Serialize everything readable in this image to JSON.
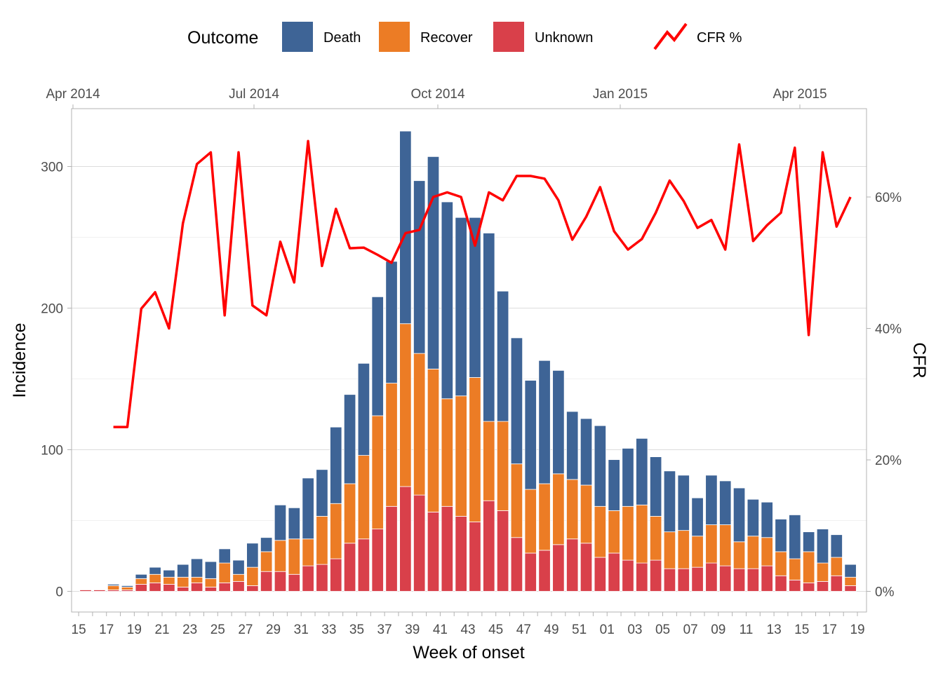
{
  "chart_data": {
    "type": "bar",
    "stacked": true,
    "xlabel": "Week of onset",
    "ylabel": "Incidence",
    "y2label": "CFR",
    "ylim": [
      0,
      330
    ],
    "y2lim": [
      0,
      0.7
    ],
    "y_ticks": [
      0,
      100,
      200,
      300
    ],
    "y2_ticks": [
      "0%",
      "20%",
      "40%",
      "60%"
    ],
    "y2_tick_values": [
      0,
      0.2,
      0.4,
      0.6
    ],
    "grid": true,
    "legend_position": "top",
    "legend": {
      "title": "Outcome",
      "entries": [
        "Death",
        "Recover",
        "Unknown"
      ],
      "line_entry": "CFR %"
    },
    "colors": {
      "Death": "#3e6496",
      "Recover": "#ec7c25",
      "Unknown": "#d9404a",
      "CFR": "#ff0000"
    },
    "x_tick_labels": [
      "15",
      "17",
      "19",
      "21",
      "23",
      "25",
      "27",
      "29",
      "31",
      "33",
      "35",
      "37",
      "39",
      "41",
      "43",
      "45",
      "47",
      "49",
      "51",
      "01",
      "03",
      "05",
      "07",
      "09",
      "11",
      "13",
      "15",
      "17",
      "19"
    ],
    "top_axis_labels": [
      "Apr 2014",
      "Jul 2014",
      "Oct 2014",
      "Jan 2015",
      "Apr 2015"
    ],
    "categories": [
      "15",
      "16",
      "17",
      "18",
      "19",
      "20",
      "21",
      "22",
      "23",
      "24",
      "25",
      "26",
      "27",
      "28",
      "29",
      "30",
      "31",
      "32",
      "33",
      "34",
      "35",
      "36",
      "37",
      "38",
      "39",
      "40",
      "41",
      "42",
      "43",
      "44",
      "45",
      "46",
      "47",
      "48",
      "49",
      "50",
      "51",
      "52",
      "01",
      "02",
      "03",
      "04",
      "05",
      "06",
      "07",
      "08",
      "09",
      "10",
      "11",
      "12",
      "13",
      "14",
      "15",
      "16",
      "17",
      "18"
    ],
    "series": [
      {
        "name": "Unknown",
        "values": [
          1,
          1,
          1,
          1,
          5,
          6,
          5,
          3,
          6,
          3,
          6,
          7,
          4,
          14,
          14,
          12,
          18,
          19,
          23,
          34,
          37,
          44,
          60,
          74,
          68,
          56,
          60,
          53,
          49,
          64,
          57,
          38,
          27,
          29,
          33,
          37,
          34,
          24,
          27,
          22,
          20,
          22,
          16,
          16,
          17,
          20,
          18,
          16,
          16,
          18,
          11,
          8,
          6,
          7,
          11,
          4
        ]
      },
      {
        "name": "Recover",
        "values": [
          0,
          0,
          3,
          2,
          4,
          6,
          5,
          7,
          4,
          6,
          14,
          5,
          13,
          14,
          22,
          25,
          19,
          34,
          39,
          42,
          59,
          80,
          87,
          115,
          100,
          101,
          76,
          85,
          102,
          56,
          63,
          52,
          45,
          47,
          50,
          42,
          41,
          36,
          30,
          38,
          41,
          31,
          26,
          27,
          22,
          27,
          29,
          19,
          23,
          20,
          17,
          15,
          22,
          13,
          13,
          6
        ]
      },
      {
        "name": "Death",
        "values": [
          0,
          0,
          1,
          1,
          3,
          5,
          5,
          9,
          13,
          12,
          10,
          10,
          17,
          10,
          25,
          22,
          43,
          33,
          54,
          63,
          65,
          84,
          86,
          136,
          122,
          150,
          139,
          126,
          113,
          133,
          92,
          89,
          77,
          87,
          73,
          48,
          47,
          57,
          36,
          41,
          47,
          42,
          43,
          39,
          27,
          35,
          31,
          38,
          26,
          25,
          23,
          31,
          14,
          24,
          16,
          9
        ]
      }
    ],
    "cfr_line": {
      "name": "CFR %",
      "values": [
        null,
        null,
        0.25,
        0.25,
        0.43,
        0.455,
        0.4,
        0.56,
        0.65,
        0.668,
        0.42,
        0.668,
        0.435,
        0.42,
        0.532,
        0.47,
        0.685,
        0.495,
        0.582,
        0.522,
        0.523,
        0.512,
        0.5,
        0.545,
        0.55,
        0.6,
        0.607,
        0.6,
        0.526,
        0.607,
        0.595,
        0.632,
        0.632,
        0.628,
        0.595,
        0.535,
        0.57,
        0.615,
        0.548,
        0.52,
        0.536,
        0.576,
        0.625,
        0.594,
        0.553,
        0.565,
        0.52,
        0.68,
        0.533,
        0.557,
        0.576,
        0.675,
        0.39,
        0.668,
        0.555,
        0.6
      ]
    }
  }
}
